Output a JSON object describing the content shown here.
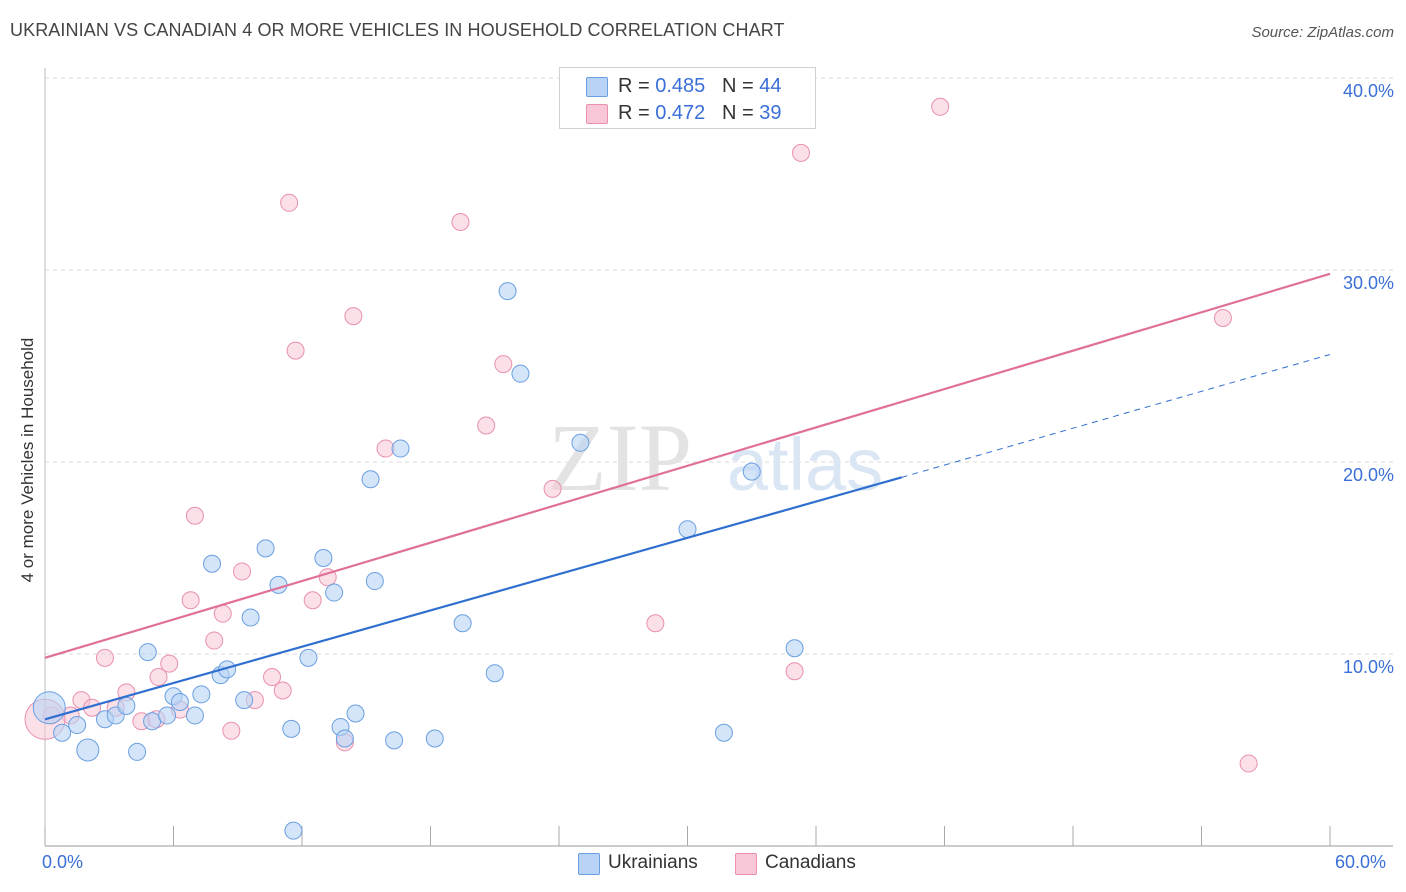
{
  "title": "UKRAINIAN VS CANADIAN 4 OR MORE VEHICLES IN HOUSEHOLD CORRELATION CHART",
  "source": "Source: ZipAtlas.com",
  "watermark": {
    "zip": "ZIP",
    "atlas": "atlas"
  },
  "legend": {
    "ukrainians": {
      "r_label": "R = ",
      "r": "0.485",
      "n_label": "N = ",
      "n": "44"
    },
    "canadians": {
      "r_label": "R = ",
      "r": "0.472",
      "n_label": "N = ",
      "n": "39"
    }
  },
  "colors": {
    "ukrainians_fill": "#b8d3f5",
    "ukrainians_stroke": "#6a9fe0",
    "ukrainians_line": "#2f6fd0",
    "canadians_fill": "#f8c6d6",
    "canadians_stroke": "#e890ae",
    "canadians_line": "#e0709a",
    "tick_text": "#3a6fd8",
    "grid": "#d8d8d8"
  },
  "chart_data": {
    "type": "scatter",
    "title": "UKRAINIAN VS CANADIAN 4 OR MORE VEHICLES IN HOUSEHOLD CORRELATION CHART",
    "xlabel": "",
    "ylabel": "4 or more Vehicles in Household",
    "xlim": [
      0,
      60
    ],
    "ylim": [
      0,
      42
    ],
    "x_tick_labels": [
      "0.0%",
      "60.0%"
    ],
    "y_ticks": [
      10,
      20,
      30,
      40
    ],
    "y_tick_labels": [
      "10.0%",
      "20.0%",
      "30.0%",
      "40.0%"
    ],
    "series": [
      {
        "name": "Ukrainians",
        "points": [
          [
            0.2,
            7.2
          ],
          [
            0.8,
            5.9
          ],
          [
            1.5,
            6.3
          ],
          [
            2.0,
            5.0
          ],
          [
            2.8,
            6.6
          ],
          [
            3.3,
            6.8
          ],
          [
            3.8,
            7.3
          ],
          [
            4.3,
            4.9
          ],
          [
            4.8,
            10.1
          ],
          [
            5.0,
            6.5
          ],
          [
            5.7,
            6.8
          ],
          [
            6.0,
            7.8
          ],
          [
            6.3,
            7.5
          ],
          [
            7.0,
            6.8
          ],
          [
            7.3,
            7.9
          ],
          [
            7.8,
            14.7
          ],
          [
            8.2,
            8.9
          ],
          [
            8.5,
            9.2
          ],
          [
            9.3,
            7.6
          ],
          [
            9.6,
            11.9
          ],
          [
            10.3,
            15.5
          ],
          [
            10.9,
            13.6
          ],
          [
            11.5,
            6.1
          ],
          [
            12.3,
            9.8
          ],
          [
            13.0,
            15.0
          ],
          [
            13.5,
            13.2
          ],
          [
            13.8,
            6.2
          ],
          [
            14.0,
            5.6
          ],
          [
            14.5,
            6.9
          ],
          [
            15.2,
            19.1
          ],
          [
            15.4,
            13.8
          ],
          [
            16.3,
            5.5
          ],
          [
            16.6,
            20.7
          ],
          [
            18.2,
            5.6
          ],
          [
            19.5,
            11.6
          ],
          [
            21.0,
            9.0
          ],
          [
            21.6,
            28.9
          ],
          [
            22.2,
            24.6
          ],
          [
            25.0,
            21.0
          ],
          [
            30.0,
            16.5
          ],
          [
            31.7,
            5.9
          ],
          [
            33.0,
            19.5
          ],
          [
            35.0,
            10.3
          ],
          [
            11.6,
            0.8
          ]
        ],
        "trend": {
          "x": [
            0,
            40
          ],
          "y": [
            6.6,
            19.2
          ]
        },
        "trend_extrapolated": {
          "x": [
            40,
            60
          ],
          "y": [
            19.2,
            25.6
          ]
        }
      },
      {
        "name": "Canadians",
        "points": [
          [
            0.3,
            6.8
          ],
          [
            1.2,
            6.8
          ],
          [
            1.7,
            7.6
          ],
          [
            2.2,
            7.2
          ],
          [
            2.8,
            9.8
          ],
          [
            3.3,
            7.2
          ],
          [
            3.8,
            8.0
          ],
          [
            4.5,
            6.5
          ],
          [
            5.2,
            6.6
          ],
          [
            5.3,
            8.8
          ],
          [
            5.8,
            9.5
          ],
          [
            6.3,
            7.1
          ],
          [
            6.8,
            12.8
          ],
          [
            7.0,
            17.2
          ],
          [
            7.9,
            10.7
          ],
          [
            8.3,
            12.1
          ],
          [
            8.7,
            6.0
          ],
          [
            9.2,
            14.3
          ],
          [
            9.8,
            7.6
          ],
          [
            10.6,
            8.8
          ],
          [
            11.1,
            8.1
          ],
          [
            11.4,
            33.5
          ],
          [
            11.7,
            25.8
          ],
          [
            12.5,
            12.8
          ],
          [
            13.2,
            14.0
          ],
          [
            14.0,
            5.4
          ],
          [
            14.4,
            27.6
          ],
          [
            15.9,
            20.7
          ],
          [
            19.4,
            32.5
          ],
          [
            20.6,
            21.9
          ],
          [
            21.4,
            25.1
          ],
          [
            23.7,
            18.6
          ],
          [
            28.5,
            11.6
          ],
          [
            35.0,
            9.1
          ],
          [
            35.3,
            36.1
          ],
          [
            41.8,
            38.5
          ],
          [
            55.0,
            27.5
          ],
          [
            56.2,
            4.3
          ],
          [
            0.0,
            6.6
          ]
        ],
        "trend": {
          "x": [
            0,
            60
          ],
          "y": [
            9.8,
            29.8
          ]
        }
      }
    ]
  },
  "bottom_legend": {
    "ukrainians": "Ukrainians",
    "canadians": "Canadians"
  }
}
